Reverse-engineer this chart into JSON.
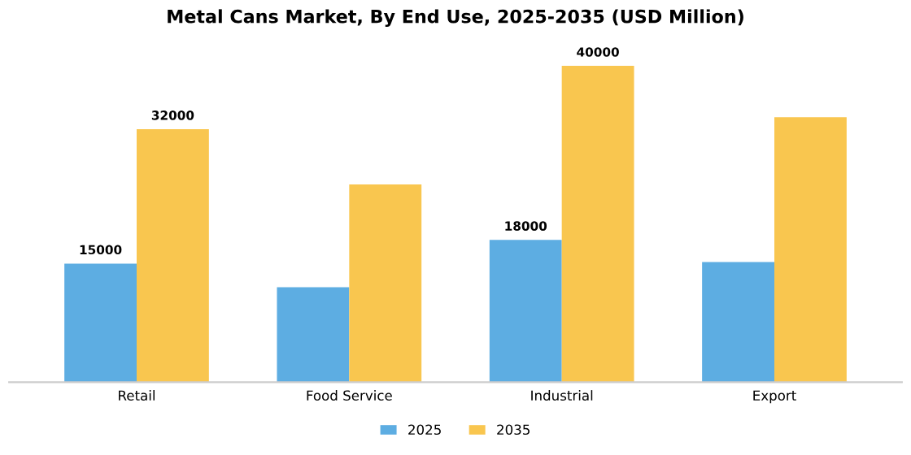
{
  "chart_data": {
    "type": "bar",
    "title": "Metal Cans Market, By End Use, 2025-2035 (USD Million)",
    "categories": [
      "Retail",
      "Food Service",
      "Industrial",
      "Export"
    ],
    "series": [
      {
        "name": "2025",
        "color": "#5dade2",
        "values": [
          15000,
          12000,
          18000,
          15200
        ],
        "value_labels": [
          "15000",
          null,
          "18000",
          null
        ]
      },
      {
        "name": "2035",
        "color": "#f9c64f",
        "values": [
          32000,
          25000,
          40000,
          33500
        ],
        "value_labels": [
          "32000",
          null,
          "40000",
          null
        ]
      }
    ],
    "legend": "bottom",
    "tick_labels": "x"
  }
}
